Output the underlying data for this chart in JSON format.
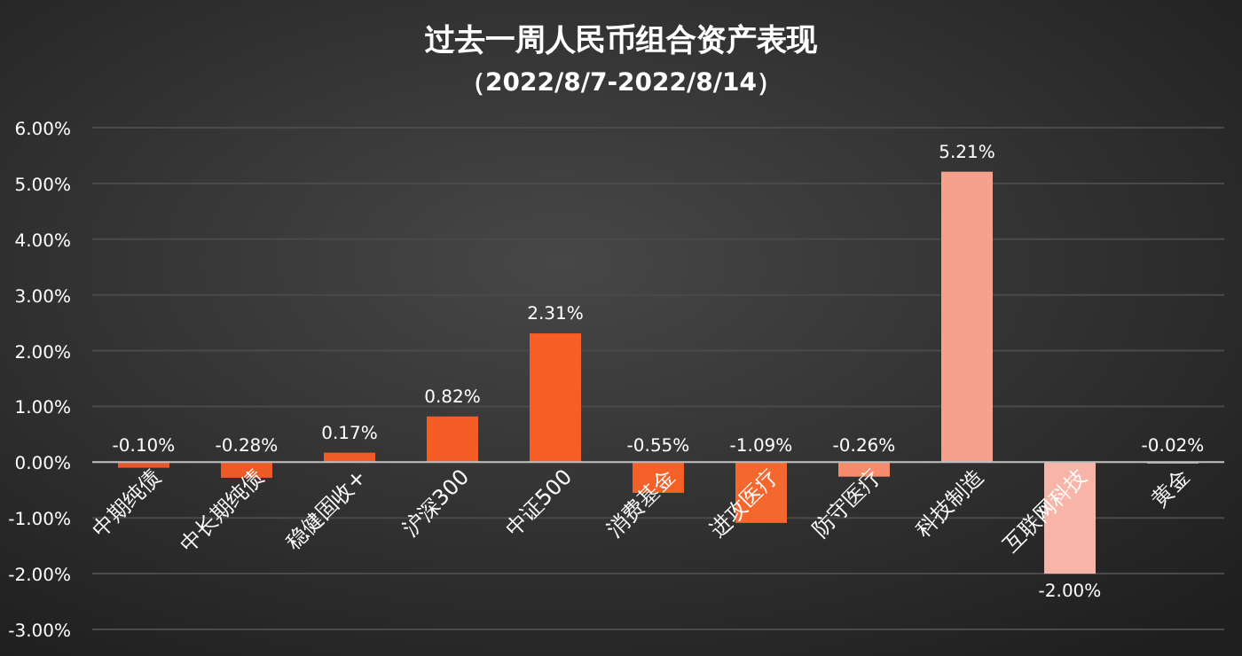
{
  "chart_data": {
    "type": "bar",
    "title": "过去一周人民币组合资产表现",
    "subtitle": "（2022/8/7-2022/8/14）",
    "categories": [
      "中期纯债",
      "中长期纯债",
      "稳健固收+",
      "沪深300",
      "中证500",
      "消费基金",
      "进攻医疗",
      "防守医疗",
      "科技制造",
      "互联网科技",
      "黄金"
    ],
    "values": [
      -0.1,
      -0.28,
      0.17,
      0.82,
      2.31,
      -0.55,
      -1.09,
      -0.26,
      5.21,
      -2.0,
      -0.02
    ],
    "colors": [
      "#e8582a",
      "#ec5a28",
      "#f05b27",
      "#f45d26",
      "#f65e25",
      "#f46128",
      "#f4682f",
      "#f58a6c",
      "#f6a08e",
      "#f8b4a6",
      "#b0a8a4"
    ],
    "value_labels": [
      "-0.10%",
      "-0.28%",
      "0.17%",
      "0.82%",
      "2.31%",
      "-0.55%",
      "-1.09%",
      "-0.26%",
      "5.21%",
      "-2.00%",
      "-0.02%"
    ],
    "ylim": [
      -3,
      6
    ],
    "yticks": [
      {
        "value": -3,
        "label": "-3.00%"
      },
      {
        "value": -2,
        "label": "-2.00%"
      },
      {
        "value": -1,
        "label": "-1.00%"
      },
      {
        "value": 0,
        "label": "0.00%"
      },
      {
        "value": 1,
        "label": "1.00%"
      },
      {
        "value": 2,
        "label": "2.00%"
      },
      {
        "value": 3,
        "label": "3.00%"
      },
      {
        "value": 4,
        "label": "4.00%"
      },
      {
        "value": 5,
        "label": "5.00%"
      },
      {
        "value": 6,
        "label": "6.00%"
      }
    ],
    "grid": "y"
  }
}
